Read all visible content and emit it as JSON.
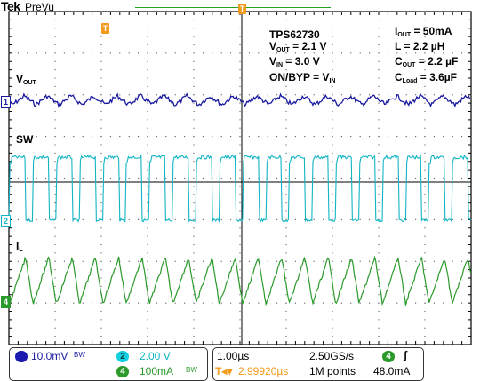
{
  "header": {
    "brand": "Tek",
    "mode": "PreVu",
    "trigger_marker": "T"
  },
  "annotations": {
    "device": "TPS62730",
    "vout": {
      "label": "V",
      "sub": "OUT",
      "value": " = 2.1 V"
    },
    "vin": {
      "label": "V",
      "sub": "IN",
      "value": " = 3.0 V"
    },
    "onbyp": {
      "label": "ON/BYP = V",
      "sub": "IN"
    },
    "iout": {
      "label": "I",
      "sub": "OUT",
      "value": " = 50mA"
    },
    "l": {
      "value": "L = 2.2 µH"
    },
    "cout": {
      "label": "C",
      "sub": "OUT",
      "value": " = 2.2 µF"
    },
    "cload": {
      "label": "C",
      "sub": "Load",
      "value": " = 3.6µF"
    }
  },
  "signals": {
    "vout": {
      "label": "V",
      "sub": "OUT"
    },
    "sw": {
      "label": "SW"
    },
    "il": {
      "label": "I",
      "sub": "L"
    }
  },
  "channels": {
    "ch1": {
      "marker": "1",
      "color": "#1a1aa0"
    },
    "ch2": {
      "marker": "2",
      "color": "#12b5c4"
    },
    "ch4": {
      "marker": "4",
      "color": "#2a9a2a"
    }
  },
  "status": {
    "ch1_chip": "1",
    "ch1_scale": "10.0mV",
    "ch1_bw": "BW",
    "ch2_chip": "2",
    "ch2_scale": "2.00 V",
    "ch4_chip": "4",
    "ch4_scale": "100mA",
    "ch4_bw": "BW",
    "timebase": "1.00µs",
    "sample_rate": "2.50GS/s",
    "trig_chip": "4",
    "trig_slope": "ʃ",
    "trig_delay": "2.99920µs",
    "record_length": "1M points",
    "trig_level": "48.0mA"
  }
}
